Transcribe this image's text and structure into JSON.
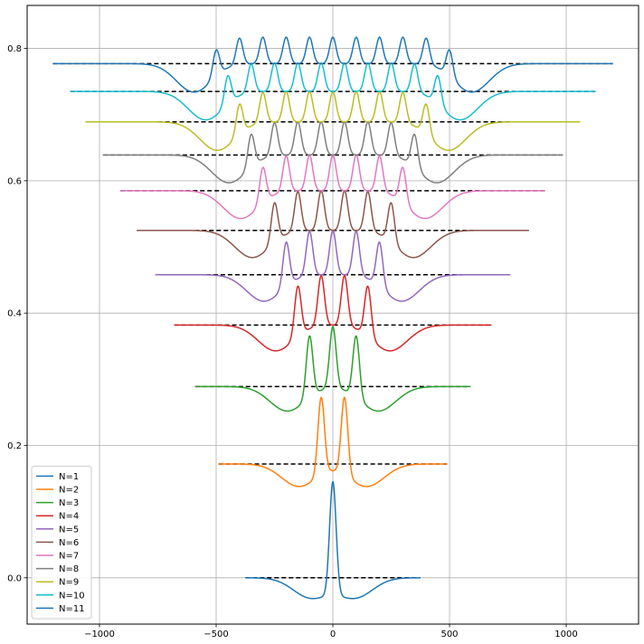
{
  "chart_data": {
    "type": "line",
    "title": "",
    "xlabel": "",
    "ylabel": "",
    "xlim": [
      -1310,
      1310
    ],
    "ylim": [
      -0.07,
      0.865
    ],
    "xticks": [
      -1000,
      -500,
      0,
      500,
      1000
    ],
    "xtick_labels": [
      "−1000",
      "−500",
      "0",
      "500",
      "1000"
    ],
    "yticks": [
      0.0,
      0.2,
      0.4,
      0.6,
      0.8
    ],
    "ytick_labels": [
      "0.0",
      "0.2",
      "0.4",
      "0.6",
      "0.8"
    ],
    "grid": true,
    "legend_position": "lower-left",
    "baseline_style": "black dashed",
    "series": [
      {
        "name": "N=1",
        "color": "#1f77b4",
        "baseline": 0.0,
        "x_range": [
          -375,
          375
        ],
        "peaks": [
          0
        ],
        "peak_height": 0.172,
        "dip_depth": 0.03
      },
      {
        "name": "N=2",
        "color": "#ff7f0e",
        "baseline": 0.172,
        "x_range": [
          -490,
          490
        ],
        "peaks": [
          -50,
          50
        ],
        "peak_height": 0.117,
        "dip_depth": 0.034
      },
      {
        "name": "N=3",
        "color": "#2ca02c",
        "baseline": 0.289,
        "x_range": [
          -590,
          590
        ],
        "peaks": [
          -100,
          0,
          100
        ],
        "peak_height": 0.093,
        "dip_depth": 0.037
      },
      {
        "name": "N=4",
        "color": "#d62728",
        "baseline": 0.382,
        "x_range": [
          -680,
          680
        ],
        "peaks": [
          -150,
          -50,
          50,
          150
        ],
        "peak_height": 0.076,
        "dip_depth": 0.039
      },
      {
        "name": "N=5",
        "color": "#9467bd",
        "baseline": 0.458,
        "x_range": [
          -760,
          760
        ],
        "peaks": [
          -200,
          -100,
          0,
          100,
          200
        ],
        "peak_height": 0.067,
        "dip_depth": 0.04
      },
      {
        "name": "N=6",
        "color": "#8c564b",
        "baseline": 0.525,
        "x_range": [
          -840,
          840
        ],
        "peaks": [
          -250,
          -150,
          -50,
          50,
          150,
          250
        ],
        "peak_height": 0.06,
        "dip_depth": 0.041
      },
      {
        "name": "N=7",
        "color": "#e377c2",
        "baseline": 0.585,
        "x_range": [
          -910,
          910
        ],
        "peaks": [
          -300,
          -200,
          -100,
          0,
          100,
          200,
          300
        ],
        "peak_height": 0.054,
        "dip_depth": 0.042
      },
      {
        "name": "N=8",
        "color": "#7f7f7f",
        "baseline": 0.639,
        "x_range": [
          -985,
          985
        ],
        "peaks": [
          -350,
          -250,
          -150,
          -50,
          50,
          150,
          250,
          350
        ],
        "peak_height": 0.05,
        "dip_depth": 0.042
      },
      {
        "name": "N=9",
        "color": "#bcbd22",
        "baseline": 0.689,
        "x_range": [
          -1060,
          1060
        ],
        "peaks": [
          -400,
          -300,
          -200,
          -100,
          0,
          100,
          200,
          300,
          400
        ],
        "peak_height": 0.046,
        "dip_depth": 0.043
      },
      {
        "name": "N=10",
        "color": "#17becf",
        "baseline": 0.735,
        "x_range": [
          -1125,
          1125
        ],
        "peaks": [
          -450,
          -350,
          -250,
          -150,
          -50,
          50,
          150,
          250,
          350,
          450
        ],
        "peak_height": 0.043,
        "dip_depth": 0.043
      },
      {
        "name": "N=11",
        "color": "#1f77b4",
        "baseline": 0.777,
        "x_range": [
          -1200,
          1200
        ],
        "peaks": [
          -500,
          -400,
          -300,
          -200,
          -100,
          0,
          100,
          200,
          300,
          400,
          500
        ],
        "peak_height": 0.04,
        "dip_depth": 0.043
      }
    ]
  }
}
